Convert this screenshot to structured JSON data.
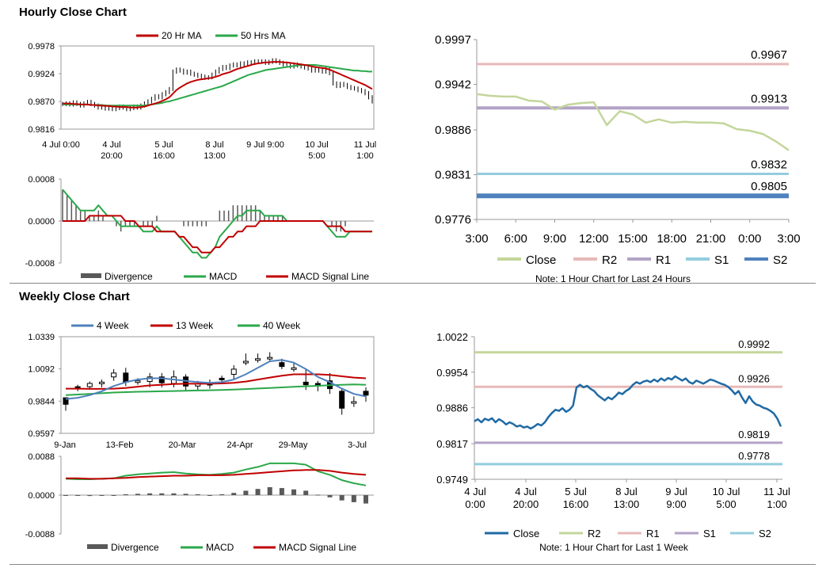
{
  "titles": {
    "hourly": "Hourly Close Chart",
    "weekly": "Weekly Close Chart"
  },
  "colors": {
    "close_hourly": "#c3d69b",
    "close_weekly": "#1f6aa5",
    "r2": "#e6b9b8",
    "r2_weekly": "#c3d69b",
    "r1": "#b3a2c7",
    "s1": "#93cddd",
    "s2": "#4f81bd",
    "ma20": "#c00000",
    "ma50": "#2aa84a",
    "ma4": "#4f81bd",
    "divergence": "#595959"
  },
  "chart_data": [
    {
      "id": "hourly_price",
      "type": "candlestick",
      "title": "Hourly Close Chart",
      "legend": [
        "20 Hr MA",
        "50 Hrs MA"
      ],
      "y_ticks": [
        "0.9978",
        "0.9924",
        "0.9870",
        "0.9816"
      ],
      "ylim": [
        0.9816,
        0.9978
      ],
      "x_ticks": [
        [
          "4 Jul 0:00"
        ],
        [
          "4 Jul",
          "20:00"
        ],
        [
          "5 Jul",
          "16:00"
        ],
        [
          "8 Jul",
          "13:00"
        ],
        [
          "9 Jul 9:00"
        ],
        [
          "10 Jul",
          "5:00"
        ],
        [
          "11 Jul",
          "1:00"
        ]
      ],
      "close": [
        0.9865,
        0.9866,
        0.9864,
        0.9868,
        0.9865,
        0.9862,
        0.9866,
        0.9869,
        0.9865,
        0.9862,
        0.9858,
        0.986,
        0.9856,
        0.9858,
        0.9855,
        0.9857,
        0.986,
        0.9858,
        0.9855,
        0.9857,
        0.986,
        0.9858,
        0.9862,
        0.9866,
        0.987,
        0.9875,
        0.988,
        0.9878,
        0.9884,
        0.9888,
        0.9894,
        0.9928,
        0.9932,
        0.993,
        0.9926,
        0.9928,
        0.9924,
        0.9922,
        0.992,
        0.9918,
        0.9916,
        0.9917,
        0.9922,
        0.9928,
        0.9933,
        0.9937,
        0.9935,
        0.994,
        0.9942,
        0.994,
        0.9944,
        0.9942,
        0.9946,
        0.9945,
        0.9948,
        0.9947,
        0.9948,
        0.9945,
        0.9947,
        0.995,
        0.9948,
        0.9945,
        0.9942,
        0.994,
        0.9938,
        0.9942,
        0.994,
        0.9938,
        0.9936,
        0.9934,
        0.993,
        0.9932,
        0.993,
        0.9928,
        0.9934,
        0.9925,
        0.9905,
        0.99,
        0.9904,
        0.9902,
        0.9898,
        0.9896,
        0.9895,
        0.9892,
        0.989,
        0.9886,
        0.9878,
        0.987
      ],
      "ma20": [
        0.9866,
        0.9866,
        0.9866,
        0.9865,
        0.9865,
        0.9864,
        0.9864,
        0.9864,
        0.9863,
        0.9863,
        0.9862,
        0.9862,
        0.9861,
        0.9861,
        0.986,
        0.986,
        0.9859,
        0.9859,
        0.9859,
        0.9858,
        0.9858,
        0.9858,
        0.9859,
        0.986,
        0.9862,
        0.9864,
        0.9866,
        0.9868,
        0.9871,
        0.9874,
        0.9878,
        0.9885,
        0.9892,
        0.9897,
        0.9901,
        0.9905,
        0.9908,
        0.991,
        0.9912,
        0.9913,
        0.9914,
        0.9915,
        0.9916,
        0.9918,
        0.992,
        0.9923,
        0.9925,
        0.9927,
        0.993,
        0.9933,
        0.9935,
        0.9937,
        0.9939,
        0.9941,
        0.9943,
        0.9944,
        0.9945,
        0.9946,
        0.9946,
        0.9947,
        0.9947,
        0.9947,
        0.9946,
        0.9946,
        0.9945,
        0.9944,
        0.9943,
        0.9942,
        0.9941,
        0.994,
        0.9938,
        0.9937,
        0.9936,
        0.9935,
        0.9934,
        0.9932,
        0.9929,
        0.9926,
        0.9923,
        0.992,
        0.9917,
        0.9914,
        0.9911,
        0.9908,
        0.9905,
        0.9902,
        0.9898,
        0.9894
      ],
      "ma50": [
        0.9864,
        0.9864,
        0.9864,
        0.9864,
        0.9864,
        0.9864,
        0.9864,
        0.9864,
        0.9863,
        0.9863,
        0.9863,
        0.9863,
        0.9862,
        0.9862,
        0.9862,
        0.9862,
        0.9862,
        0.9862,
        0.9862,
        0.9862,
        0.9862,
        0.9862,
        0.9862,
        0.9862,
        0.9863,
        0.9864,
        0.9865,
        0.9866,
        0.9867,
        0.9869,
        0.987,
        0.9872,
        0.9874,
        0.9876,
        0.9878,
        0.988,
        0.9882,
        0.9884,
        0.9886,
        0.9888,
        0.989,
        0.9892,
        0.9894,
        0.9896,
        0.9898,
        0.99,
        0.9903,
        0.9906,
        0.9909,
        0.9912,
        0.9915,
        0.9918,
        0.9921,
        0.9923,
        0.9925,
        0.9927,
        0.9929,
        0.9931,
        0.9932,
        0.9933,
        0.9934,
        0.9935,
        0.9936,
        0.9937,
        0.9938,
        0.9939,
        0.994,
        0.9941,
        0.9941,
        0.9941,
        0.9941,
        0.9941,
        0.994,
        0.9939,
        0.9938,
        0.9937,
        0.9936,
        0.9935,
        0.9934,
        0.9933,
        0.9932,
        0.9931,
        0.993,
        0.993,
        0.9929,
        0.9929,
        0.9928,
        0.9928
      ]
    },
    {
      "id": "hourly_macd",
      "type": "bar+line",
      "legend": [
        "Divergence",
        "MACD",
        "MACD Signal Line"
      ],
      "y_ticks": [
        "0.0008",
        "0.0000",
        "-0.0008"
      ],
      "ylim": [
        -0.0008,
        0.0008
      ],
      "macd": [
        0.0006,
        0.0005,
        0.0004,
        0.0003,
        0.0002,
        0.0002,
        0.0002,
        0.0002,
        0.0003,
        0.0002,
        0.0001,
        0.0001,
        0.0,
        -0.0001,
        -0.0001,
        -0.0001,
        -0.0001,
        -0.0001,
        -0.0002,
        -0.0002,
        -0.0002,
        -0.0001,
        -0.0002,
        -0.0002,
        -0.0002,
        -0.0002,
        -0.0003,
        -0.0004,
        -0.0005,
        -0.0006,
        -0.0006,
        -0.0007,
        -0.0007,
        -0.0006,
        -0.0005,
        -0.0003,
        -0.0002,
        -0.0001,
        0.0,
        0.0001,
        0.0001,
        0.0002,
        0.0002,
        0.0002,
        0.0002,
        0.0001,
        0.0001,
        0.0001,
        0.0001,
        0.0001,
        0.0,
        0.0,
        0.0,
        0.0,
        0.0,
        0.0,
        0.0,
        0.0,
        0.0,
        -0.0001,
        -0.0002,
        -0.0003,
        -0.0003,
        -0.0003,
        -0.0002,
        -0.0002,
        -0.0002,
        -0.0002,
        -0.0002,
        -0.0002
      ],
      "signal": [
        0.0,
        0.0,
        0.0,
        0.0,
        0.0,
        0.0,
        0.0001,
        0.0001,
        0.0001,
        0.0001,
        0.0001,
        0.0001,
        0.0001,
        0.0001,
        0.0,
        0.0,
        0.0,
        -0.0001,
        -0.0001,
        -0.0001,
        -0.0001,
        -0.0002,
        -0.0002,
        -0.0002,
        -0.0002,
        -0.0002,
        -0.0003,
        -0.0003,
        -0.0004,
        -0.0005,
        -0.0005,
        -0.0006,
        -0.0006,
        -0.0006,
        -0.0005,
        -0.0005,
        -0.0004,
        -0.0003,
        -0.0003,
        -0.0002,
        -0.0002,
        -0.0001,
        -0.0001,
        -0.0001,
        0.0,
        0.0,
        0.0,
        0.0,
        0.0,
        0.0,
        0.0,
        0.0,
        0.0,
        0.0,
        0.0,
        0.0,
        0.0,
        0.0,
        0.0,
        -0.0001,
        -0.0001,
        -0.0001,
        -0.0001,
        -0.0002,
        -0.0002,
        -0.0002,
        -0.0002,
        -0.0002,
        -0.0002,
        -0.0002
      ]
    },
    {
      "id": "hourly_levels",
      "type": "line",
      "legend": [
        "Close",
        "R2",
        "R1",
        "S1",
        "S2"
      ],
      "note": "Note: 1 Hour Chart for Last 24 Hours",
      "y_ticks": [
        "0.9997",
        "0.9942",
        "0.9886",
        "0.9831",
        "0.9776"
      ],
      "ylim": [
        0.9776,
        0.9997
      ],
      "x_ticks": [
        "3:00",
        "6:00",
        "9:00",
        "12:00",
        "15:00",
        "18:00",
        "21:00",
        "0:00",
        "3:00"
      ],
      "close": [
        0.993,
        0.9928,
        0.9927,
        0.9927,
        0.9922,
        0.9921,
        0.9911,
        0.9917,
        0.9919,
        0.992,
        0.9892,
        0.9909,
        0.9905,
        0.9895,
        0.9899,
        0.9895,
        0.9896,
        0.9895,
        0.9895,
        0.9894,
        0.9887,
        0.9885,
        0.9881,
        0.9872,
        0.9861
      ],
      "levels": {
        "R2": 0.9967,
        "R1": 0.9913,
        "S1": 0.9832,
        "S2": 0.9805
      },
      "level_labels": {
        "R2": "0.9967",
        "R1": "0.9913",
        "S1": "0.9832",
        "S2": "0.9805"
      }
    },
    {
      "id": "weekly_price",
      "type": "candlestick",
      "title": "Weekly Close Chart",
      "legend": [
        "4 Week",
        "13 Week",
        "40 Week"
      ],
      "y_ticks": [
        "1.0339",
        "1.0092",
        "0.9844",
        "0.9597"
      ],
      "ylim": [
        0.9597,
        1.0339
      ],
      "x_ticks": [
        "9-Jan",
        "13-Feb",
        "20-Mar",
        "24-Apr",
        "29-May",
        "3-Jul"
      ],
      "candles": [
        [
          0.987,
          0.982,
          0.9845,
          0.977
        ],
        [
          0.9955,
          0.995,
          0.997,
          0.992
        ],
        [
          0.9955,
          0.998,
          0.9995,
          0.9935
        ],
        [
          0.9985,
          0.999,
          1.001,
          0.995
        ],
        [
          1.003,
          1.006,
          1.009,
          1.0
        ],
        [
          1.006,
          0.999,
          1.01,
          0.996
        ],
        [
          1.0,
          1.0,
          1.002,
          0.997
        ],
        [
          0.9995,
          1.003,
          1.006,
          0.995
        ],
        [
          1.003,
          0.9985,
          1.006,
          0.995
        ],
        [
          0.998,
          1.003,
          1.008,
          0.995
        ],
        [
          1.003,
          0.996,
          1.005,
          0.992
        ],
        [
          0.996,
          0.998,
          1.0,
          0.993
        ],
        [
          0.998,
          0.9975,
          1.001,
          0.994
        ],
        [
          1.002,
          1.001,
          1.004,
          0.998
        ],
        [
          1.005,
          1.009,
          1.012,
          1.001
        ],
        [
          1.015,
          1.015,
          1.021,
          1.012
        ],
        [
          1.017,
          1.017,
          1.021,
          1.014
        ],
        [
          1.018,
          1.018,
          1.022,
          1.015
        ],
        [
          1.014,
          1.011,
          1.017,
          1.009
        ],
        [
          1.01,
          1.01,
          1.014,
          1.007
        ],
        [
          0.999,
          0.997,
          1.009,
          0.993
        ],
        [
          0.998,
          0.996,
          1.0,
          0.992
        ],
        [
          1.0,
          0.994,
          1.006,
          0.99
        ],
        [
          0.992,
          0.979,
          0.994,
          0.974
        ],
        [
          0.984,
          0.984,
          0.988,
          0.98
        ],
        [
          0.992,
          0.989,
          0.995,
          0.984
        ]
      ],
      "ma4": [
        0.986,
        0.987,
        0.989,
        0.992,
        0.996,
        0.999,
        1.001,
        1.002,
        1.002,
        1.001,
        1.0,
        0.999,
        0.9985,
        0.999,
        1.001,
        1.005,
        1.01,
        1.015,
        1.016,
        1.014,
        1.009,
        1.003,
        0.999,
        0.994,
        0.99,
        0.988
      ],
      "ma13": [
        0.994,
        0.994,
        0.9938,
        0.9938,
        0.994,
        0.9945,
        0.9955,
        0.9965,
        0.997,
        0.9975,
        0.9978,
        0.9978,
        0.9978,
        0.998,
        0.9985,
        0.9995,
        1.001,
        1.0025,
        1.004,
        1.005,
        1.005,
        1.005,
        1.0045,
        1.0035,
        1.0025,
        1.002
      ],
      "ma40": [
        0.989,
        0.9895,
        0.99,
        0.9905,
        0.991,
        0.9913,
        0.9916,
        0.9918,
        0.992,
        0.9922,
        0.9924,
        0.9926,
        0.9928,
        0.993,
        0.9933,
        0.9937,
        0.9941,
        0.9945,
        0.995,
        0.9954,
        0.9958,
        0.9962,
        0.9966,
        0.997,
        0.9972,
        0.997
      ]
    },
    {
      "id": "weekly_macd",
      "type": "bar+line",
      "legend": [
        "Divergence",
        "MACD",
        "MACD Signal Line"
      ],
      "y_ticks": [
        "0.0088",
        "0.0000",
        "-0.0088"
      ],
      "ylim": [
        -0.0088,
        0.0088
      ],
      "divergence": [
        -0.0001,
        -0.0001,
        -0.0002,
        -0.0001,
        -0.0001,
        0.0002,
        0.0003,
        0.0004,
        0.0004,
        0.0004,
        0.0003,
        0.0002,
        0.0,
        0.0002,
        0.0005,
        0.001,
        0.0014,
        0.0018,
        0.0016,
        0.0013,
        0.001,
        0.0001,
        -0.0005,
        -0.0012,
        -0.0016,
        -0.0019
      ],
      "macd": [
        0.0037,
        0.0036,
        0.0036,
        0.0037,
        0.0038,
        0.0044,
        0.0047,
        0.0049,
        0.0051,
        0.0052,
        0.0049,
        0.0047,
        0.0046,
        0.0048,
        0.0051,
        0.0058,
        0.0064,
        0.0072,
        0.0072,
        0.0072,
        0.0069,
        0.0054,
        0.0046,
        0.0034,
        0.0027,
        0.0022
      ],
      "signal": [
        0.0038,
        0.0038,
        0.0037,
        0.0037,
        0.0038,
        0.0039,
        0.0041,
        0.0042,
        0.0043,
        0.0044,
        0.0044,
        0.0045,
        0.0045,
        0.0045,
        0.0046,
        0.0048,
        0.005,
        0.0052,
        0.0054,
        0.0056,
        0.0057,
        0.0057,
        0.0055,
        0.0051,
        0.0048,
        0.0046
      ]
    },
    {
      "id": "weekly_levels",
      "type": "line",
      "legend": [
        "Close",
        "R2",
        "R1",
        "S1",
        "S2"
      ],
      "note": "Note: 1 Hour Chart for Last 1 Week",
      "y_ticks": [
        "1.0022",
        "0.9954",
        "0.9886",
        "0.9817",
        "0.9749"
      ],
      "ylim": [
        0.9749,
        1.0022
      ],
      "x_ticks": [
        [
          "4 Jul",
          "0:00"
        ],
        [
          "4 Jul",
          "20:00"
        ],
        [
          "5 Jul",
          "16:00"
        ],
        [
          "8 Jul",
          "13:00"
        ],
        [
          "9 Jul",
          "9:00"
        ],
        [
          "10 Jul",
          "5:00"
        ],
        [
          "11 Jul",
          "1:00"
        ]
      ],
      "close": [
        0.986,
        0.9864,
        0.9858,
        0.9865,
        0.9862,
        0.9866,
        0.9858,
        0.9864,
        0.986,
        0.9854,
        0.9858,
        0.9855,
        0.985,
        0.9852,
        0.9848,
        0.985,
        0.9846,
        0.985,
        0.9855,
        0.9852,
        0.9858,
        0.9868,
        0.9876,
        0.9882,
        0.988,
        0.9885,
        0.9878,
        0.9882,
        0.989,
        0.9925,
        0.993,
        0.9925,
        0.9928,
        0.9922,
        0.9918,
        0.991,
        0.9905,
        0.99,
        0.9906,
        0.9902,
        0.9908,
        0.9915,
        0.9912,
        0.9918,
        0.9922,
        0.993,
        0.9935,
        0.9932,
        0.9936,
        0.9938,
        0.9935,
        0.994,
        0.9936,
        0.9942,
        0.9938,
        0.9943,
        0.994,
        0.9946,
        0.9942,
        0.9938,
        0.9942,
        0.9935,
        0.9932,
        0.9938,
        0.9935,
        0.9932,
        0.9936,
        0.994,
        0.9938,
        0.9935,
        0.9932,
        0.993,
        0.9926,
        0.992,
        0.9912,
        0.9918,
        0.9905,
        0.9895,
        0.9908,
        0.9898,
        0.9892,
        0.989,
        0.9886,
        0.9884,
        0.988,
        0.9875,
        0.9865,
        0.985
      ],
      "levels": {
        "R2": 0.9992,
        "R1": 0.9926,
        "S1": 0.9819,
        "S2": 0.9778
      },
      "level_labels": {
        "R2": "0.9992",
        "R1": "0.9926",
        "S1": "0.9819",
        "S2": "0.9778"
      }
    }
  ]
}
